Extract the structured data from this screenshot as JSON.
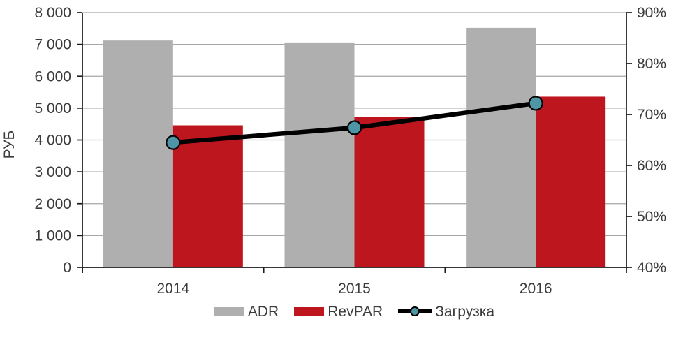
{
  "chart_data": {
    "type": "combo",
    "categories": [
      "2014",
      "2015",
      "2016"
    ],
    "series": [
      {
        "name": "ADR",
        "type": "bar",
        "axis": "left",
        "color": "#AFAFAF",
        "values": [
          7120,
          7060,
          7520
        ]
      },
      {
        "name": "RevPAR",
        "type": "bar",
        "axis": "left",
        "color": "#BE161E",
        "values": [
          4460,
          4720,
          5360
        ]
      },
      {
        "name": "Загрузка",
        "type": "line",
        "axis": "right",
        "color": "#000000",
        "marker_color": "#4E96A6",
        "values": [
          64.5,
          67.4,
          72.2
        ]
      }
    ],
    "left_axis": {
      "title": "РУБ",
      "min": 0,
      "max": 8000,
      "step": 1000,
      "tick_labels": [
        "0",
        "1 000",
        "2 000",
        "3 000",
        "4 000",
        "5 000",
        "6 000",
        "7 000",
        "8 000"
      ]
    },
    "right_axis": {
      "min": 40,
      "max": 90,
      "step": 10,
      "tick_labels": [
        "40%",
        "50%",
        "60%",
        "70%",
        "80%",
        "90%"
      ]
    },
    "grid": true,
    "legend_position": "bottom"
  },
  "colors": {
    "grid": "#A6A6A6",
    "axis": "#1A1A1A",
    "text": "#3B3B3B"
  }
}
